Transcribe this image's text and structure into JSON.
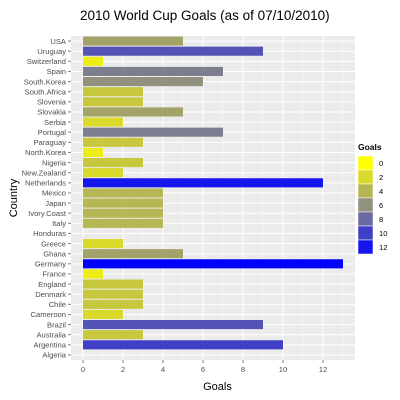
{
  "chart_data": {
    "type": "bar",
    "orientation": "horizontal",
    "title": "2010 World Cup Goals (as of 07/10/2010)",
    "xlabel": "Goals",
    "ylabel": "Country",
    "xlim": [
      -0.6,
      13.6
    ],
    "x_ticks": [
      0,
      2,
      4,
      6,
      8,
      10,
      12
    ],
    "grid": true,
    "legend_position": "right",
    "legend": {
      "title": "Goals",
      "labels": [
        "0",
        "2",
        "4",
        "6",
        "8",
        "10",
        "12"
      ]
    },
    "colors": {
      "panel_background": "#ebebeb",
      "grid_major": "#ffffff",
      "grid_minor": "#f5f5f5",
      "scale_low": "#ffff00",
      "scale_mid": "#888888",
      "scale_high": "#0000ff"
    },
    "categories": [
      "USA",
      "Uruguay",
      "Switzerland",
      "Spain",
      "South.Korea",
      "South.Africa",
      "Slovenia",
      "Slovakia",
      "Serbia",
      "Portugal",
      "Paraguay",
      "North.Korea",
      "Nigeria",
      "New.Zealand",
      "Netherlands",
      "Mexico",
      "Japan",
      "Ivory.Coast",
      "Italy",
      "Honduras",
      "Greece",
      "Ghana",
      "Germany",
      "France",
      "England",
      "Denmark",
      "Chile",
      "Cameroon",
      "Brazil",
      "Australia",
      "Argentina",
      "Algeria"
    ],
    "values": [
      5,
      9,
      1,
      7,
      6,
      3,
      3,
      5,
      2,
      7,
      3,
      1,
      3,
      2,
      12,
      4,
      4,
      4,
      4,
      0,
      2,
      5,
      13,
      1,
      3,
      3,
      3,
      2,
      9,
      3,
      10,
      0
    ]
  }
}
